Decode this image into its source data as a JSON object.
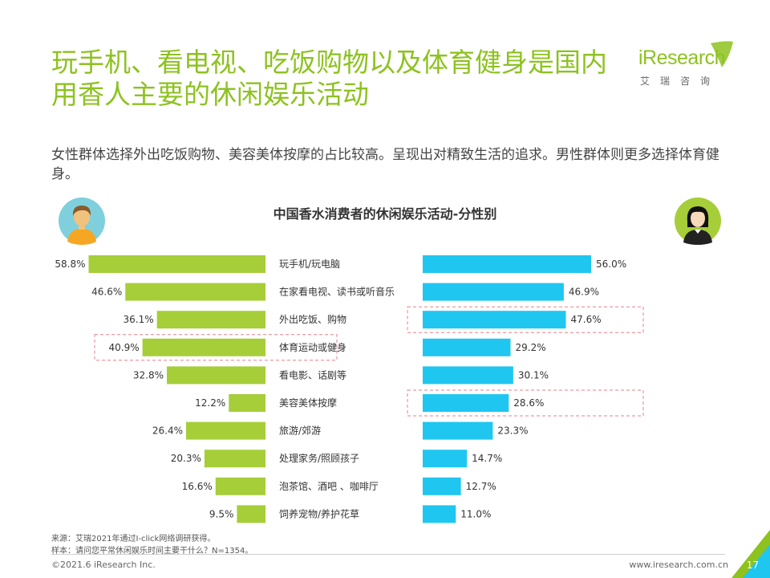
{
  "title": "玩手机、看电视、吃饭购物以及体育健身是国内用香人主要的休闲娱乐活动",
  "subtitle": "女性群体选择外出吃饭购物、美容美体按摩的占比较高。呈现出对精致生活的追求。男性群体则更多选择体育健身。",
  "logo": {
    "word": "iResearch",
    "sub": "艾瑞咨询"
  },
  "footer": {
    "source": "来源：艾瑞2021年通过I-click网络调研获得。",
    "sample": "样本：请问您平常休闲娱乐时间主要干什么？N=1354。",
    "copyright": "©2021.6 iResearch Inc.",
    "website": "www.iresearch.com.cn",
    "page": "17"
  },
  "colors": {
    "male": "#a6ce39",
    "female": "#1fc6f0",
    "accent": "#8dc21f",
    "highlight": "#e5808c"
  },
  "chart_data": {
    "type": "bar",
    "title": "中国香水消费者的休闲娱乐活动-分性别",
    "categories": [
      "玩手机/玩电脑",
      "在家看电视、读书或听音乐",
      "外出吃饭、购物",
      "体育运动或健身",
      "看电影、话剧等",
      "美容美体按摩",
      "旅游/郊游",
      "处理家务/照顾孩子",
      "泡茶馆、酒吧 、咖啡厅",
      "饲养宠物/养护花草"
    ],
    "series": [
      {
        "name": "男性",
        "values": [
          58.8,
          46.6,
          36.1,
          40.9,
          32.8,
          12.2,
          26.4,
          20.3,
          16.6,
          9.5
        ],
        "labels": [
          "58.8%",
          "46.6%",
          "36.1%",
          "40.9%",
          "32.8%",
          "12.2%",
          "26.4%",
          "20.3%",
          "16.6%",
          "9.5%"
        ]
      },
      {
        "name": "女性",
        "values": [
          56.0,
          46.9,
          47.6,
          29.2,
          30.1,
          28.6,
          23.3,
          14.7,
          12.7,
          11.0
        ],
        "labels": [
          "56.0%",
          "46.9%",
          "47.6%",
          "29.2%",
          "30.1%",
          "28.6%",
          "23.3%",
          "14.7%",
          "12.7%",
          "11.0%"
        ]
      }
    ],
    "highlight_male": [
      3
    ],
    "highlight_female": [
      2,
      5
    ]
  }
}
